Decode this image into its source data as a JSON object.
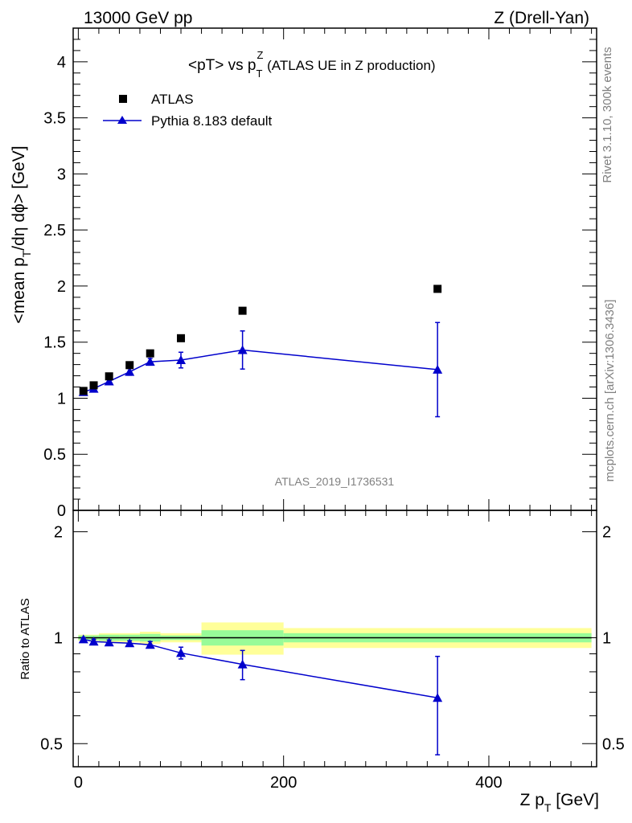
{
  "header": {
    "left": "13000 GeV pp",
    "right": "Z (Drell-Yan)"
  },
  "side_labels": {
    "rivet": "Rivet 3.1.10,  300k events",
    "mcplots": "mcplots.cern.ch [arXiv:1306.3436]"
  },
  "watermark": "ATLAS_2019_I1736531",
  "legend": {
    "data_label": "ATLAS",
    "mc_label": "Pythia 8.183 default"
  },
  "colors": {
    "mc": "#0000cc",
    "data": "#000000",
    "band_inner": "#98fb98",
    "band_outer": "#ffff99",
    "label_gray": "#808080"
  },
  "chart_data": [
    {
      "type": "scatter",
      "title_main": "<pT> vs p",
      "title_sup": "Z",
      "title_sub": "T",
      "title_suffix": " (ATLAS UE in Z production)",
      "ylabel_main": "<mean p",
      "ylabel_sub": "T",
      "ylabel_suffix": "/dη dϕ> [GeV]",
      "xlim": [
        -5,
        505
      ],
      "ylim": [
        0,
        4.3
      ],
      "yticks": [
        0,
        0.5,
        1,
        1.5,
        2,
        2.5,
        3,
        3.5,
        4
      ],
      "ytick_labels": [
        "0",
        "0.5",
        "1",
        "1.5",
        "2",
        "2.5",
        "3",
        "3.5",
        "4"
      ],
      "series": [
        {
          "name": "ATLAS",
          "marker": "square",
          "x": [
            5,
            15,
            30,
            50,
            70,
            100,
            160,
            350
          ],
          "y": [
            1.065,
            1.115,
            1.195,
            1.295,
            1.4,
            1.535,
            1.78,
            1.975
          ]
        },
        {
          "name": "Pythia 8.183 default",
          "marker": "triangle",
          "x": [
            5,
            15,
            30,
            50,
            70,
            100,
            160,
            350
          ],
          "y": [
            1.055,
            1.085,
            1.15,
            1.235,
            1.325,
            1.34,
            1.43,
            1.255
          ],
          "err": [
            0.01,
            0.02,
            0.02,
            0.03,
            0.03,
            0.07,
            0.17,
            0.42
          ]
        }
      ]
    },
    {
      "type": "scatter",
      "ylabel": "Ratio to ATLAS",
      "xlabel_main": "Z p",
      "xlabel_sub": "T",
      "xlabel_suffix": " [GeV]",
      "xlim": [
        -5,
        505
      ],
      "ylim": [
        0.43,
        2.3
      ],
      "xticks": [
        0,
        200,
        400
      ],
      "xtick_labels": [
        "0",
        "200",
        "400"
      ],
      "yticks": [
        0.5,
        1,
        2
      ],
      "ytick_labels": [
        "0.5",
        "1",
        "2"
      ],
      "bands": [
        {
          "x0": 0,
          "x1": 20,
          "inner": 0.015,
          "outer": 0.02
        },
        {
          "x0": 20,
          "x1": 40,
          "inner": 0.02,
          "outer": 0.03
        },
        {
          "x0": 40,
          "x1": 60,
          "inner": 0.02,
          "outer": 0.03
        },
        {
          "x0": 60,
          "x1": 80,
          "inner": 0.025,
          "outer": 0.04
        },
        {
          "x0": 80,
          "x1": 120,
          "inner": 0.015,
          "outer": 0.03
        },
        {
          "x0": 120,
          "x1": 200,
          "inner": 0.05,
          "outer": 0.105
        },
        {
          "x0": 200,
          "x1": 500,
          "inner": 0.03,
          "outer": 0.065
        }
      ],
      "series": [
        {
          "name": "Pythia 8.183 default / ATLAS",
          "x": [
            5,
            15,
            30,
            50,
            70,
            100,
            160,
            350
          ],
          "y": [
            0.99,
            0.975,
            0.97,
            0.965,
            0.955,
            0.905,
            0.84,
            0.675
          ],
          "err": [
            0.01,
            0.015,
            0.015,
            0.015,
            0.02,
            0.035,
            0.08,
            0.21
          ]
        }
      ]
    }
  ]
}
